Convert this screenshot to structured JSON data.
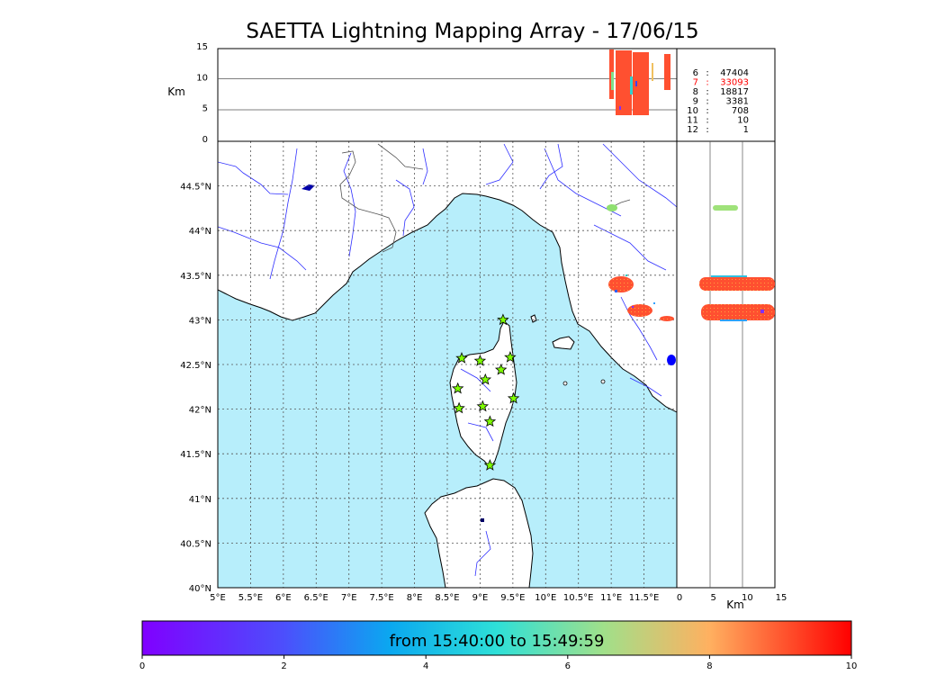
{
  "title": "SAETTA Lightning Mapping Array - 17/06/15",
  "top_panel": {
    "ylabel": "Km",
    "yticks": [
      "0",
      "5",
      "10",
      "15"
    ]
  },
  "side_panel": {
    "xlabel": "Km",
    "xticks": [
      "0",
      "5",
      "10",
      "15"
    ]
  },
  "map": {
    "lon_ticks": [
      "5°E",
      "5.5°E",
      "6°E",
      "6.5°E",
      "7°E",
      "7.5°E",
      "8°E",
      "8.5°E",
      "9°E",
      "9.5°E",
      "10°E",
      "10.5°E",
      "11°E",
      "11.5°E"
    ],
    "lat_ticks": [
      "40°N",
      "40.5°N",
      "41°N",
      "41.5°N",
      "42°N",
      "42.5°N",
      "43°N",
      "43.5°N",
      "44°N",
      "44.5°N"
    ],
    "lon_range": [
      5,
      12
    ],
    "lat_range": [
      40,
      45
    ],
    "sea_color": "#b7eefb",
    "station_color": "#7fff00",
    "stations": [
      {
        "lon": 9.35,
        "lat": 43.0
      },
      {
        "lon": 8.72,
        "lat": 42.57
      },
      {
        "lon": 9.0,
        "lat": 42.54
      },
      {
        "lon": 9.46,
        "lat": 42.58
      },
      {
        "lon": 9.32,
        "lat": 42.44
      },
      {
        "lon": 9.08,
        "lat": 42.33
      },
      {
        "lon": 8.66,
        "lat": 42.23
      },
      {
        "lon": 9.51,
        "lat": 42.12
      },
      {
        "lon": 8.68,
        "lat": 42.01
      },
      {
        "lon": 9.04,
        "lat": 42.03
      },
      {
        "lon": 9.15,
        "lat": 41.86
      },
      {
        "lon": 9.15,
        "lat": 41.37
      }
    ]
  },
  "stats": [
    {
      "stations": "6",
      "count": "47404",
      "color": "#000000"
    },
    {
      "stations": "7",
      "count": "33093",
      "color": "#ff0000"
    },
    {
      "stations": "8",
      "count": "18817",
      "color": "#000000"
    },
    {
      "stations": "9",
      "count": "3381",
      "color": "#000000"
    },
    {
      "stations": "10",
      "count": "708",
      "color": "#000000"
    },
    {
      "stations": "11",
      "count": "10",
      "color": "#000000"
    },
    {
      "stations": "12",
      "count": "1",
      "color": "#000000"
    }
  ],
  "colorbar": {
    "label": "from 15:40:00 to 15:49:59",
    "ticks": [
      "0",
      "2",
      "4",
      "6",
      "8",
      "10"
    ]
  }
}
